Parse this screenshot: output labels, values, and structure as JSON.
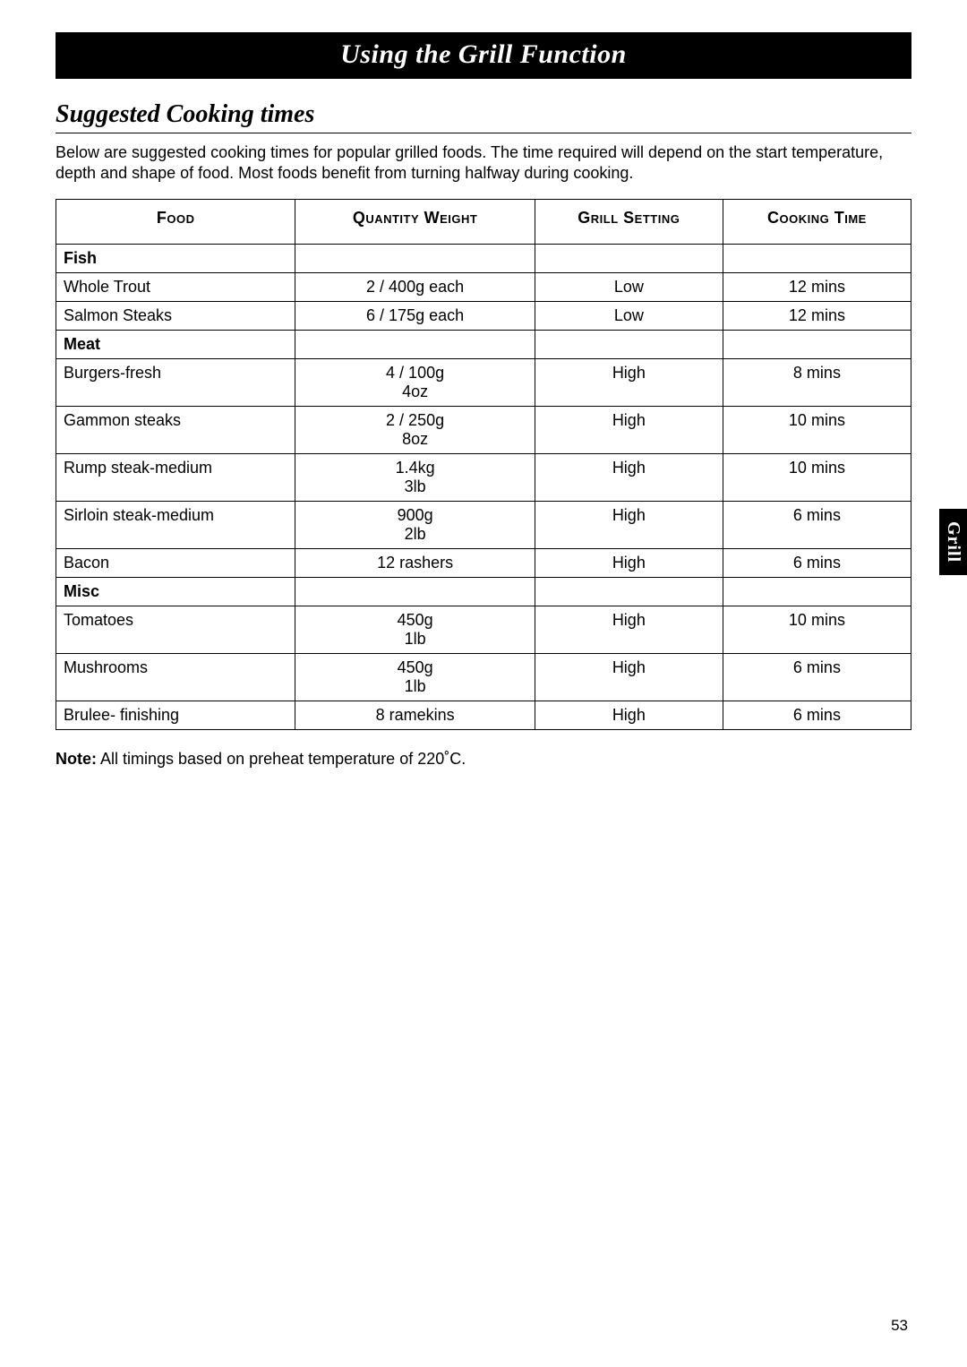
{
  "title_bar": "Using the Grill Function",
  "section_heading": "Suggested Cooking times",
  "intro": "Below are suggested cooking times for popular grilled foods. The time required will depend on the start temperature, depth and shape of food. Most foods benefit from turning halfway during cooking.",
  "table": {
    "headers": {
      "food": "Food",
      "qty": "Quantity Weight",
      "setting": "Grill Setting",
      "time": "Cooking Time"
    },
    "categories": [
      {
        "name": "Fish",
        "rows": [
          {
            "food": "Whole Trout",
            "qty": "2 / 400g each",
            "qty2": "",
            "setting": "Low",
            "time": "12 mins"
          },
          {
            "food": "Salmon Steaks",
            "qty": "6 / 175g each",
            "qty2": "",
            "setting": "Low",
            "time": "12 mins"
          }
        ]
      },
      {
        "name": "Meat",
        "rows": [
          {
            "food": "Burgers-fresh",
            "qty": "4 / 100g",
            "qty2": "4oz",
            "setting": "High",
            "time": "8 mins"
          },
          {
            "food": "Gammon steaks",
            "qty": "2 / 250g",
            "qty2": "8oz",
            "setting": "High",
            "time": "10 mins"
          },
          {
            "food": "Rump steak-medium",
            "qty": "1.4kg",
            "qty2": "3lb",
            "setting": "High",
            "time": "10 mins"
          },
          {
            "food": "Sirloin steak-medium",
            "qty": "900g",
            "qty2": "2lb",
            "setting": "High",
            "time": "6 mins"
          },
          {
            "food": "Bacon",
            "qty": "12 rashers",
            "qty2": "",
            "setting": "High",
            "time": "6 mins"
          }
        ]
      },
      {
        "name": "Misc",
        "rows": [
          {
            "food": "Tomatoes",
            "qty": "450g",
            "qty2": "1lb",
            "setting": "High",
            "time": "10 mins"
          },
          {
            "food": "Mushrooms",
            "qty": "450g",
            "qty2": "1lb",
            "setting": "High",
            "time": "6 mins"
          },
          {
            "food": "Brulee- finishing",
            "qty": "8 ramekins",
            "qty2": "",
            "setting": "High",
            "time": "6 mins"
          }
        ]
      }
    ]
  },
  "note_label": "Note:",
  "note_text": " All timings based on preheat temperature of 220˚C.",
  "side_tab": "Grill",
  "page_number": "53",
  "colors": {
    "page_bg": "#ffffff",
    "text": "#000000",
    "title_bg": "#000000",
    "title_fg": "#ffffff",
    "border": "#000000"
  },
  "fonts": {
    "serif_italic_bold": "Times New Roman",
    "sans": "Arial"
  }
}
